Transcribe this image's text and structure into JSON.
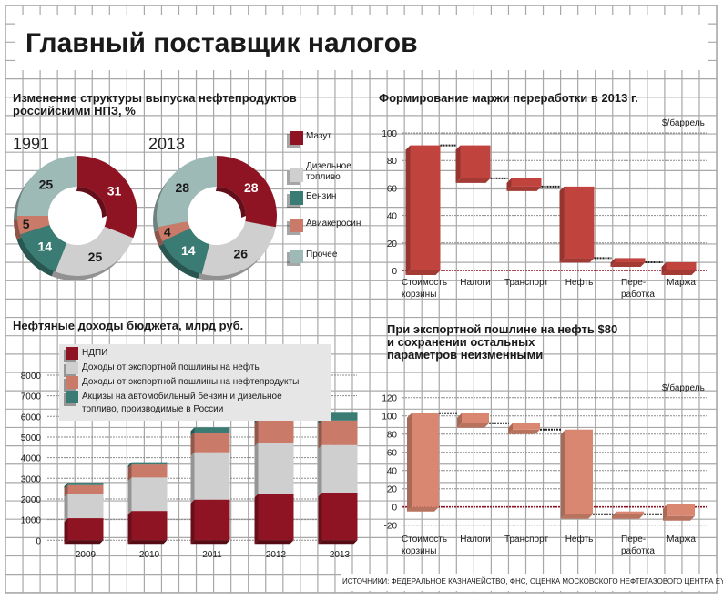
{
  "header": {
    "title": "Главный поставщик налогов"
  },
  "colors": {
    "grid": "#a8a8a8",
    "mazut": "#8f1423",
    "diesel": "#cfcfcf",
    "benzin": "#3a7b73",
    "avia": "#c97a68",
    "other": "#9dbab6",
    "waterfall_2013": "#c0443d",
    "waterfall_80": "#d98770",
    "zero_line": "#8f1423"
  },
  "donut_section": {
    "title_line1": "Изменение структуры выпуска нефтепродуктов",
    "title_line2": "российскими НПЗ, %",
    "legend": [
      {
        "label": "Мазут",
        "color": "#8f1423"
      },
      {
        "label": "Дизельное",
        "label2": "топливо",
        "color": "#cfcfcf"
      },
      {
        "label": "Бензин",
        "color": "#3a7b73"
      },
      {
        "label": "Авиакеросин",
        "color": "#c97a68"
      },
      {
        "label": "Прочее",
        "color": "#9dbab6"
      }
    ]
  },
  "bar_section": {
    "title": "Нефтяные доходы бюджета, млрд руб.",
    "legend": [
      {
        "label": "НДПИ",
        "color": "#8f1423"
      },
      {
        "label": "Доходы от экспортной пошлины на нефть",
        "color": "#cfcfcf"
      },
      {
        "label": "Доходы от экспортной пошлины на нефтепродукты",
        "color": "#c97a68"
      },
      {
        "label": "Акцизы на автомобильный бензин и дизельное",
        "label2": "топливо, производимые в России",
        "color": "#3a7b73"
      }
    ]
  },
  "waterfall1_section": {
    "title": "Формирование маржи переработки в 2013 г.",
    "unit": "$/баррель"
  },
  "waterfall2_section": {
    "title_line1": "При экспортной пошлине на нефть $80",
    "title_line2": "и сохранении остальных",
    "title_line3": "параметров неизменными",
    "unit": "$/баррель"
  },
  "footer": {
    "source": "ИСТОЧНИКИ: ФЕДЕРАЛЬНОЕ КАЗНАЧЕЙСТВО, ФНС, ОЦЕНКА МОСКОВСКОГО НЕФТЕГАЗОВОГО ЦЕНТРА EY"
  },
  "chart_data": [
    {
      "type": "pie",
      "variant": "donut",
      "title": "1991",
      "unit": "%",
      "categories": [
        "Мазут",
        "Дизельное топливо",
        "Бензин",
        "Авиакеросин",
        "Прочее"
      ],
      "values": [
        31,
        25,
        14,
        5,
        25
      ]
    },
    {
      "type": "pie",
      "variant": "donut",
      "title": "2013",
      "unit": "%",
      "categories": [
        "Мазут",
        "Дизельное топливо",
        "Бензин",
        "Авиакеросин",
        "Прочее"
      ],
      "values": [
        28,
        26,
        14,
        4,
        28
      ]
    },
    {
      "type": "bar",
      "stacked": true,
      "title": "Нефтяные доходы бюджета, млрд руб.",
      "categories": [
        "2009",
        "2010",
        "2011",
        "2012",
        "2013"
      ],
      "series": [
        {
          "name": "НДПИ",
          "values": [
            1070,
            1420,
            1970,
            2250,
            2310
          ]
        },
        {
          "name": "Доходы от экспортной пошлины на нефть",
          "values": [
            1190,
            1620,
            2290,
            2480,
            2300
          ]
        },
        {
          "name": "Доходы от экспортной пошлины на нефтепродукты",
          "values": [
            410,
            630,
            960,
            1120,
            1190
          ]
        },
        {
          "name": "Акцизы на автомобильный бензин и дизельное топливо, производимые в России",
          "values": [
            120,
            110,
            250,
            330,
            420
          ]
        }
      ],
      "ylim": [
        0,
        8000
      ],
      "yticks": [
        0,
        1000,
        2000,
        3000,
        4000,
        5000,
        6000,
        7000,
        8000
      ],
      "grid": true,
      "legend_position": "top-left"
    },
    {
      "type": "bar",
      "variant": "waterfall",
      "title": "Формирование маржи переработки в 2013 г.",
      "ylabel": "$/баррель",
      "categories": [
        "Стоимость корзины",
        "Налоги",
        "Транспорт",
        "Нефть",
        "Переработка",
        "Маржа"
      ],
      "category_lines": [
        [
          "Стоимость",
          "корзины"
        ],
        [
          "Налоги"
        ],
        [
          "Транспорт"
        ],
        [
          "Нефть"
        ],
        [
          "Пере-",
          "работка"
        ],
        [
          "Маржа"
        ]
      ],
      "ranges": [
        [
          0,
          91
        ],
        [
          67,
          91
        ],
        [
          61,
          67
        ],
        [
          9,
          61
        ],
        [
          6,
          9
        ],
        [
          0,
          6
        ]
      ],
      "ylim": [
        0,
        100
      ],
      "yticks": [
        0,
        20,
        40,
        60,
        80,
        100
      ],
      "grid": true
    },
    {
      "type": "bar",
      "variant": "waterfall",
      "title": "При экспортной пошлине на нефть $80 и сохранении остальных параметров неизменными",
      "ylabel": "$/баррель",
      "categories": [
        "Стоимость корзины",
        "Налоги",
        "Транспорт",
        "Нефть",
        "Переработка",
        "Маржа"
      ],
      "category_lines": [
        [
          "Стоимость",
          "корзины"
        ],
        [
          "Налоги"
        ],
        [
          "Транспорт"
        ],
        [
          "Нефть"
        ],
        [
          "Пере-",
          "работка"
        ],
        [
          "Маржа"
        ]
      ],
      "ranges": [
        [
          0,
          103
        ],
        [
          92,
          103
        ],
        [
          85,
          92
        ],
        [
          -8,
          85
        ],
        [
          -8,
          -5
        ],
        [
          -10,
          3
        ]
      ],
      "ylim": [
        -20,
        120
      ],
      "yticks": [
        -20,
        0,
        20,
        40,
        60,
        80,
        100,
        120
      ],
      "grid": true
    }
  ]
}
